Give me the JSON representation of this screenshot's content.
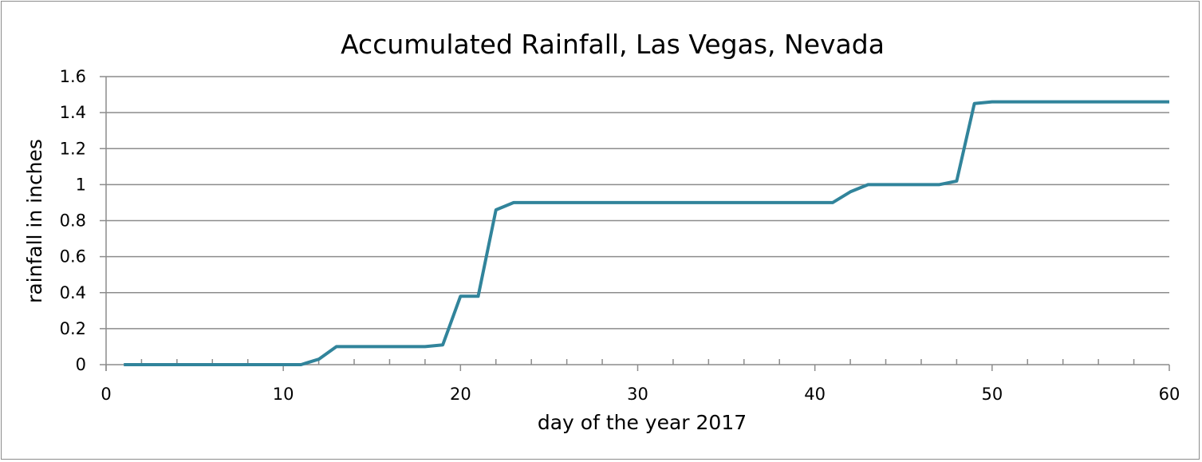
{
  "chart_data": {
    "type": "line",
    "title": "Accumulated Rainfall, Las Vegas, Nevada",
    "xlabel": "day of the year 2017",
    "ylabel": "rainfall in inches",
    "xlim": [
      0,
      60
    ],
    "ylim": [
      0,
      1.6
    ],
    "x_ticks": [
      "0",
      "10",
      "20",
      "30",
      "40",
      "50",
      "60"
    ],
    "y_ticks": [
      "0",
      "0.2",
      "0.4",
      "0.6",
      "0.8",
      "1",
      "1.2",
      "1.4",
      "1.6"
    ],
    "grid": "horizontal",
    "legend": "none",
    "line_color": "#31849B",
    "series": [
      {
        "x": [
          1,
          2,
          3,
          4,
          5,
          6,
          7,
          8,
          9,
          10,
          11,
          12,
          13,
          14,
          15,
          16,
          17,
          18,
          19,
          20,
          21,
          22,
          23,
          24,
          25,
          26,
          27,
          28,
          29,
          30,
          31,
          32,
          33,
          34,
          35,
          36,
          37,
          38,
          39,
          40,
          41,
          42,
          43,
          44,
          45,
          46,
          47,
          48,
          49,
          50,
          51,
          52,
          53,
          54,
          55,
          56,
          57,
          58,
          59,
          60
        ],
        "y": [
          0,
          0,
          0,
          0,
          0,
          0,
          0,
          0,
          0,
          0,
          0,
          0.03,
          0.1,
          0.1,
          0.1,
          0.1,
          0.1,
          0.1,
          0.11,
          0.38,
          0.38,
          0.86,
          0.9,
          0.9,
          0.9,
          0.9,
          0.9,
          0.9,
          0.9,
          0.9,
          0.9,
          0.9,
          0.9,
          0.9,
          0.9,
          0.9,
          0.9,
          0.9,
          0.9,
          0.9,
          0.9,
          0.96,
          1.0,
          1.0,
          1.0,
          1.0,
          1.0,
          1.02,
          1.45,
          1.46,
          1.46,
          1.46,
          1.46,
          1.46,
          1.46,
          1.46,
          1.46,
          1.46,
          1.46,
          1.46
        ]
      }
    ]
  }
}
